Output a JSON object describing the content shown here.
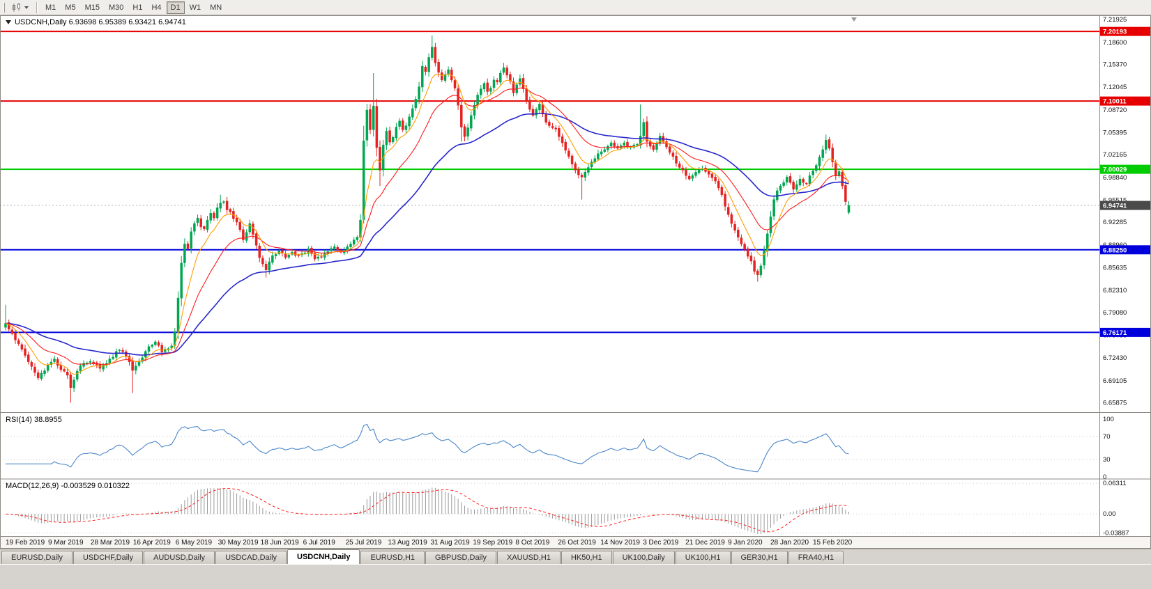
{
  "toolbar": {
    "timeframes": [
      {
        "label": "M1",
        "active": false
      },
      {
        "label": "M5",
        "active": false
      },
      {
        "label": "M15",
        "active": false
      },
      {
        "label": "M30",
        "active": false
      },
      {
        "label": "H1",
        "active": false
      },
      {
        "label": "H4",
        "active": false
      },
      {
        "label": "D1",
        "active": true
      },
      {
        "label": "W1",
        "active": false
      },
      {
        "label": "MN",
        "active": false
      }
    ]
  },
  "chart_data": {
    "type": "candlestick",
    "symbol": "USDCNH",
    "timeframe": "Daily",
    "legends": {
      "main": "USDCNH,Daily  6.93698 6.95389 6.93421 6.94741",
      "rsi": "RSI(14) 38.8955",
      "macd": "MACD(12,26,9) -0.003529 0.010322"
    },
    "last_bar": {
      "open": 6.93698,
      "high": 6.95389,
      "low": 6.93421,
      "close": 6.94741
    },
    "bars": 260,
    "noise": 0.0025,
    "price_range": [
      6.645,
      7.2255
    ],
    "close_anchors": [
      [
        0,
        6.775
      ],
      [
        2,
        6.76
      ],
      [
        4,
        6.745
      ],
      [
        6,
        6.728
      ],
      [
        8,
        6.712
      ],
      [
        10,
        6.695
      ],
      [
        11,
        6.702
      ],
      [
        13,
        6.714
      ],
      [
        15,
        6.723
      ],
      [
        17,
        6.707
      ],
      [
        19,
        6.699
      ],
      [
        20,
        6.681
      ],
      [
        21,
        6.692
      ],
      [
        23,
        6.713
      ],
      [
        26,
        6.719
      ],
      [
        29,
        6.709
      ],
      [
        32,
        6.723
      ],
      [
        35,
        6.736
      ],
      [
        37,
        6.727
      ],
      [
        39,
        6.706
      ],
      [
        41,
        6.719
      ],
      [
        44,
        6.741
      ],
      [
        46,
        6.748
      ],
      [
        48,
        6.733
      ],
      [
        50,
        6.738
      ],
      [
        51,
        6.742
      ],
      [
        52,
        6.762
      ],
      [
        53,
        6.812
      ],
      [
        54,
        6.863
      ],
      [
        55,
        6.891
      ],
      [
        56,
        6.884
      ],
      [
        57,
        6.909
      ],
      [
        58,
        6.921
      ],
      [
        59,
        6.929
      ],
      [
        60,
        6.916
      ],
      [
        61,
        6.913
      ],
      [
        62,
        6.926
      ],
      [
        63,
        6.936
      ],
      [
        64,
        6.929
      ],
      [
        65,
        6.944
      ],
      [
        66,
        6.951
      ],
      [
        67,
        6.953
      ],
      [
        68,
        6.941
      ],
      [
        69,
        6.938
      ],
      [
        70,
        6.928
      ],
      [
        71,
        6.923
      ],
      [
        72,
        6.912
      ],
      [
        73,
        6.897
      ],
      [
        74,
        6.908
      ],
      [
        75,
        6.921
      ],
      [
        76,
        6.905
      ],
      [
        77,
        6.889
      ],
      [
        78,
        6.871
      ],
      [
        79,
        6.862
      ],
      [
        80,
        6.853
      ],
      [
        81,
        6.865
      ],
      [
        82,
        6.874
      ],
      [
        84,
        6.881
      ],
      [
        86,
        6.871
      ],
      [
        88,
        6.879
      ],
      [
        90,
        6.874
      ],
      [
        91,
        6.877
      ],
      [
        93,
        6.884
      ],
      [
        95,
        6.869
      ],
      [
        97,
        6.872
      ],
      [
        99,
        6.88
      ],
      [
        101,
        6.887
      ],
      [
        103,
        6.879
      ],
      [
        104,
        6.882
      ],
      [
        106,
        6.891
      ],
      [
        108,
        6.901
      ],
      [
        109,
        6.926
      ],
      [
        110,
        7.042
      ],
      [
        111,
        7.087
      ],
      [
        112,
        7.058
      ],
      [
        113,
        7.093
      ],
      [
        114,
        7.032
      ],
      [
        115,
        6.999
      ],
      [
        116,
        7.036
      ],
      [
        117,
        7.056
      ],
      [
        118,
        7.04
      ],
      [
        119,
        7.047
      ],
      [
        120,
        7.062
      ],
      [
        121,
        7.071
      ],
      [
        122,
        7.058
      ],
      [
        123,
        7.064
      ],
      [
        124,
        7.077
      ],
      [
        125,
        7.089
      ],
      [
        126,
        7.103
      ],
      [
        127,
        7.121
      ],
      [
        128,
        7.151
      ],
      [
        129,
        7.143
      ],
      [
        130,
        7.164
      ],
      [
        131,
        7.179
      ],
      [
        132,
        7.156
      ],
      [
        133,
        7.142
      ],
      [
        134,
        7.131
      ],
      [
        135,
        7.139
      ],
      [
        136,
        7.146
      ],
      [
        137,
        7.131
      ],
      [
        138,
        7.119
      ],
      [
        139,
        7.094
      ],
      [
        140,
        7.062
      ],
      [
        141,
        7.048
      ],
      [
        142,
        7.061
      ],
      [
        143,
        7.079
      ],
      [
        144,
        7.094
      ],
      [
        145,
        7.109
      ],
      [
        146,
        7.118
      ],
      [
        147,
        7.126
      ],
      [
        148,
        7.114
      ],
      [
        149,
        7.119
      ],
      [
        150,
        7.131
      ],
      [
        151,
        7.128
      ],
      [
        152,
        7.141
      ],
      [
        153,
        7.149
      ],
      [
        154,
        7.138
      ],
      [
        155,
        7.129
      ],
      [
        156,
        7.112
      ],
      [
        157,
        7.124
      ],
      [
        158,
        7.133
      ],
      [
        159,
        7.118
      ],
      [
        160,
        7.101
      ],
      [
        161,
        7.088
      ],
      [
        162,
        7.079
      ],
      [
        163,
        7.088
      ],
      [
        164,
        7.096
      ],
      [
        165,
        7.081
      ],
      [
        166,
        7.069
      ],
      [
        167,
        7.064
      ],
      [
        168,
        7.061
      ],
      [
        169,
        7.059
      ],
      [
        170,
        7.048
      ],
      [
        171,
        7.039
      ],
      [
        172,
        7.028
      ],
      [
        173,
        7.019
      ],
      [
        174,
        7.008
      ],
      [
        175,
        6.999
      ],
      [
        176,
        6.992
      ],
      [
        177,
        6.989
      ],
      [
        178,
        6.996
      ],
      [
        179,
        7.003
      ],
      [
        180,
        7.011
      ],
      [
        181,
        7.016
      ],
      [
        182,
        7.023
      ],
      [
        183,
        7.026
      ],
      [
        184,
        7.029
      ],
      [
        185,
        7.034
      ],
      [
        186,
        7.039
      ],
      [
        187,
        7.034
      ],
      [
        188,
        7.031
      ],
      [
        189,
        7.035
      ],
      [
        190,
        7.039
      ],
      [
        191,
        7.034
      ],
      [
        192,
        7.033
      ],
      [
        193,
        7.036
      ],
      [
        194,
        7.037
      ],
      [
        195,
        7.049
      ],
      [
        196,
        7.069
      ],
      [
        197,
        7.041
      ],
      [
        198,
        7.034
      ],
      [
        199,
        7.029
      ],
      [
        200,
        7.038
      ],
      [
        201,
        7.049
      ],
      [
        202,
        7.041
      ],
      [
        203,
        7.033
      ],
      [
        204,
        7.025
      ],
      [
        205,
        7.019
      ],
      [
        206,
        7.009
      ],
      [
        207,
        7.003
      ],
      [
        208,
        6.999
      ],
      [
        209,
        6.991
      ],
      [
        210,
        6.986
      ],
      [
        211,
        6.991
      ],
      [
        212,
        6.996
      ],
      [
        213,
        7.001
      ],
      [
        214,
        7.001
      ],
      [
        215,
        6.997
      ],
      [
        216,
        6.993
      ],
      [
        217,
        6.988
      ],
      [
        218,
        6.983
      ],
      [
        219,
        6.973
      ],
      [
        220,
        6.963
      ],
      [
        221,
        6.946
      ],
      [
        222,
        6.934
      ],
      [
        223,
        6.921
      ],
      [
        224,
        6.911
      ],
      [
        225,
        6.901
      ],
      [
        226,
        6.891
      ],
      [
        227,
        6.883
      ],
      [
        228,
        6.873
      ],
      [
        229,
        6.866
      ],
      [
        230,
        6.851
      ],
      [
        231,
        6.846
      ],
      [
        232,
        6.859
      ],
      [
        233,
        6.881
      ],
      [
        234,
        6.906
      ],
      [
        235,
        6.931
      ],
      [
        236,
        6.956
      ],
      [
        237,
        6.969
      ],
      [
        238,
        6.976
      ],
      [
        239,
        6.981
      ],
      [
        240,
        6.989
      ],
      [
        241,
        6.981
      ],
      [
        242,
        6.971
      ],
      [
        243,
        6.978
      ],
      [
        244,
        6.986
      ],
      [
        245,
        6.981
      ],
      [
        246,
        6.979
      ],
      [
        247,
        6.991
      ],
      [
        248,
        6.998
      ],
      [
        249,
        7.006
      ],
      [
        250,
        7.018
      ],
      [
        251,
        7.029
      ],
      [
        252,
        7.043
      ],
      [
        253,
        7.031
      ],
      [
        254,
        7.011
      ],
      [
        255,
        6.991
      ],
      [
        256,
        6.997
      ],
      [
        257,
        6.976
      ],
      [
        258,
        6.953
      ],
      [
        259,
        6.94741
      ]
    ],
    "wick_overrides": [
      [
        0,
        "h",
        6.802
      ],
      [
        20,
        "l",
        6.659
      ],
      [
        39,
        "l",
        6.673
      ],
      [
        66,
        "h",
        6.963
      ],
      [
        80,
        "l",
        6.842
      ],
      [
        110,
        "l",
        6.921
      ],
      [
        113,
        "h",
        7.141
      ],
      [
        115,
        "l",
        6.976
      ],
      [
        131,
        "h",
        7.196
      ],
      [
        140,
        "l",
        7.041
      ],
      [
        153,
        "h",
        7.156
      ],
      [
        177,
        "l",
        6.956
      ],
      [
        195,
        "h",
        7.095
      ],
      [
        231,
        "l",
        6.836
      ],
      [
        252,
        "h",
        7.051
      ]
    ],
    "candle_colors": {
      "up": "#00a651",
      "down": "#e52222"
    },
    "moving_averages": [
      {
        "period": 8,
        "color": "#ff9c00"
      },
      {
        "period": 20,
        "color": "#ff1a1a"
      },
      {
        "period": 50,
        "color": "#2626cc"
      }
    ],
    "horizontal_lines": [
      {
        "price": 7.20193,
        "label": "7.20193",
        "color": "#e60000",
        "width": 2
      },
      {
        "price": 7.10011,
        "label": "7.10011",
        "color": "#e60000",
        "width": 2
      },
      {
        "price": 7.00029,
        "label": "7.00029",
        "color": "#00cc00",
        "width": 2
      },
      {
        "price": 6.8825,
        "label": "6.88250",
        "color": "#0000dd",
        "width": 2
      },
      {
        "price": 6.76171,
        "label": "6.76171",
        "color": "#0000dd",
        "width": 2
      }
    ],
    "current_price": {
      "value": 6.94741,
      "label": "6.94741",
      "badge_color": "#4a4a4a",
      "line_color": "#b0b0b0"
    },
    "y_tick_labels": [
      "7.21925",
      "7.18600",
      "7.15370",
      "7.12045",
      "7.08720",
      "7.05395",
      "7.02165",
      "6.98840",
      "6.95515",
      "6.92285",
      "6.88960",
      "6.85635",
      "6.82310",
      "6.79080",
      "6.75755",
      "6.72430",
      "6.69105",
      "6.65875"
    ],
    "x_labels": [
      "19 Feb 2019",
      "9 Mar 2019",
      "28 Mar 2019",
      "16 Apr 2019",
      "6 May 2019",
      "30 May 2019",
      "18 Jun 2019",
      "6 Jul 2019",
      "25 Jul 2019",
      "13 Aug 2019",
      "31 Aug 2019",
      "19 Sep 2019",
      "8 Oct 2019",
      "26 Oct 2019",
      "14 Nov 2019",
      "3 Dec 2019",
      "21 Dec 2019",
      "9 Jan 2020",
      "28 Jan 2020",
      "15 Feb 2020"
    ],
    "rsi": {
      "period": 14,
      "value": 38.8955,
      "color": "#4a86c8",
      "range": [
        0,
        100
      ],
      "grid": [
        "100",
        "70",
        "30",
        "0"
      ]
    },
    "macd": {
      "fast": 12,
      "slow": 26,
      "signal": 9,
      "values": [
        -0.003529,
        0.010322
      ],
      "hist_color": "#999999",
      "signal_color": "#ff2020",
      "range": [
        -0.0455,
        0.0705
      ],
      "grid": [
        "0.06311",
        "0.00",
        "-0.03887"
      ]
    }
  },
  "tabs": [
    {
      "label": "EURUSD,Daily",
      "active": false
    },
    {
      "label": "USDCHF,Daily",
      "active": false
    },
    {
      "label": "AUDUSD,Daily",
      "active": false
    },
    {
      "label": "USDCAD,Daily",
      "active": false
    },
    {
      "label": "USDCNH,Daily",
      "active": true
    },
    {
      "label": "EURUSD,H1",
      "active": false
    },
    {
      "label": "GBPUSD,Daily",
      "active": false
    },
    {
      "label": "XAUUSD,H1",
      "active": false
    },
    {
      "label": "HK50,H1",
      "active": false
    },
    {
      "label": "UK100,Daily",
      "active": false
    },
    {
      "label": "UK100,H1",
      "active": false
    },
    {
      "label": "GER30,H1",
      "active": false
    },
    {
      "label": "FRA40,H1",
      "active": false
    }
  ]
}
